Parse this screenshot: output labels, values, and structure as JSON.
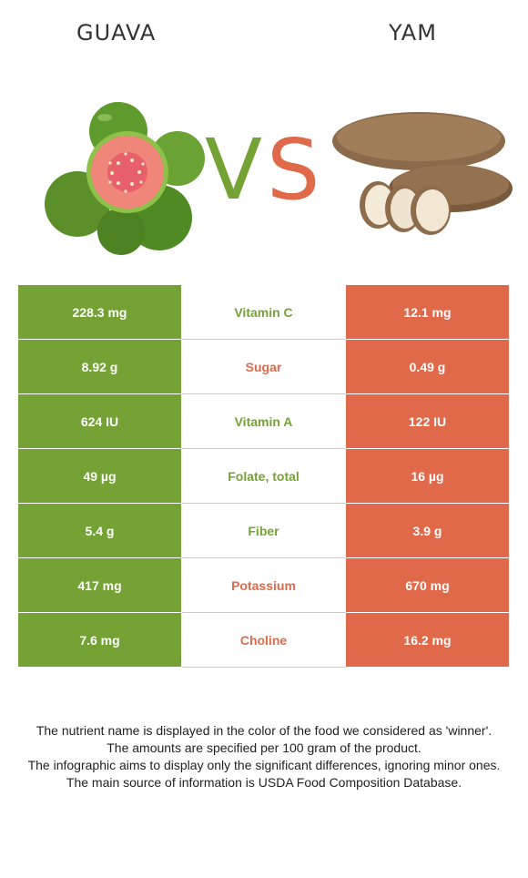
{
  "left_food": {
    "name": "GUAVA",
    "color": "#75a234"
  },
  "right_food": {
    "name": "YAM",
    "color": "#e0694a"
  },
  "vs": {
    "v": "V",
    "s": "S"
  },
  "rows": [
    {
      "nutrient": "Vitamin C",
      "left": "228.3 mg",
      "right": "12.1 mg",
      "winner": "left"
    },
    {
      "nutrient": "Sugar",
      "left": "8.92 g",
      "right": "0.49 g",
      "winner": "right"
    },
    {
      "nutrient": "Vitamin A",
      "left": "624 IU",
      "right": "122 IU",
      "winner": "left"
    },
    {
      "nutrient": "Folate, total",
      "left": "49 µg",
      "right": "16 µg",
      "winner": "left"
    },
    {
      "nutrient": "Fiber",
      "left": "5.4 g",
      "right": "3.9 g",
      "winner": "left"
    },
    {
      "nutrient": "Potassium",
      "left": "417 mg",
      "right": "670 mg",
      "winner": "right"
    },
    {
      "nutrient": "Choline",
      "left": "7.6 mg",
      "right": "16.2 mg",
      "winner": "right"
    }
  ],
  "footnotes": [
    "The nutrient name is displayed in the color of the food we considered as 'winner'.",
    "The amounts are specified per 100 gram of the product.",
    "The infographic aims to display only the significant differences, ignoring minor ones.",
    "The main source of information is USDA Food Composition Database."
  ]
}
